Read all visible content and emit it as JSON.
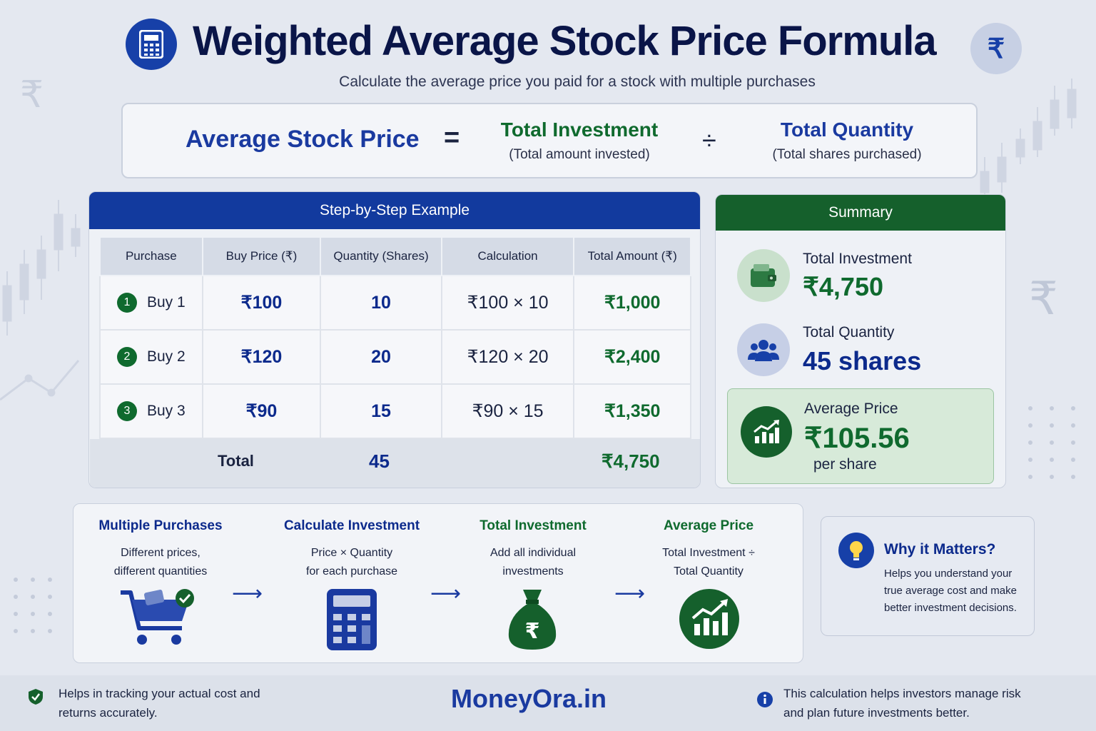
{
  "header": {
    "title": "Weighted Average Stock Price Formula",
    "subtitle": "Calculate the average price you paid for a stock with multiple purchases",
    "rupee_symbol": "₹"
  },
  "formula": {
    "lhs": "Average Stock Price",
    "equals": "=",
    "numerator_title": "Total Investment",
    "numerator_sub": "(Total amount invested)",
    "divide": "÷",
    "denominator_title": "Total Quantity",
    "denominator_sub": "(Total shares purchased)"
  },
  "example": {
    "title": "Step-by-Step Example",
    "columns": [
      "Purchase",
      "Buy Price (₹)",
      "Quantity (Shares)",
      "Calculation",
      "Total Amount (₹)"
    ],
    "rows": [
      {
        "num": "1",
        "purchase": "Buy 1",
        "price": "₹100",
        "qty": "10",
        "calc": "₹100 × 10",
        "amount": "₹1,000"
      },
      {
        "num": "2",
        "purchase": "Buy 2",
        "price": "₹120",
        "qty": "20",
        "calc": "₹120 × 20",
        "amount": "₹2,400"
      },
      {
        "num": "3",
        "purchase": "Buy 3",
        "price": "₹90",
        "qty": "15",
        "calc": "₹90 × 15",
        "amount": "₹1,350"
      }
    ],
    "total_label": "Total",
    "total_qty": "45",
    "total_amount": "₹4,750"
  },
  "summary": {
    "title": "Summary",
    "investment_label": "Total Investment",
    "investment_value": "₹4,750",
    "quantity_label": "Total Quantity",
    "quantity_value": "45 shares",
    "avg_label": "Average Price",
    "avg_value": "₹105.56",
    "avg_unit": "per share"
  },
  "steps": [
    {
      "title": "Multiple Purchases",
      "desc1": "Different prices,",
      "desc2": "different quantities",
      "icon": "cart-icon"
    },
    {
      "title": "Calculate Investment",
      "desc1": "Price × Quantity",
      "desc2": "for each purchase",
      "icon": "calculator-icon"
    },
    {
      "title": "Total Investment",
      "desc1": "Add all individual",
      "desc2": "investments",
      "icon": "money-bag-icon"
    },
    {
      "title": "Average Price",
      "desc1": "Total Investment ÷",
      "desc2": "Total Quantity",
      "icon": "growth-chart-icon"
    }
  ],
  "why": {
    "title": "Why it Matters?",
    "text": "Helps you understand your true average cost and make better investment decisions."
  },
  "footer": {
    "left": "Helps in tracking your actual cost and returns accurately.",
    "brand": "MoneyOra.in",
    "right": "This calculation helps investors manage risk and plan future investments better."
  },
  "colors": {
    "navy": "#123a9e",
    "green": "#15602c",
    "background": "#e4e8f0"
  }
}
